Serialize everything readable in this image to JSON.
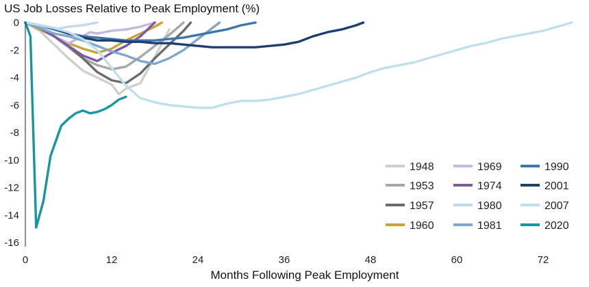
{
  "chart_data": {
    "type": "line",
    "title": "US Job Losses Relative to Peak Employment (%)",
    "xlabel": "Months Following Peak Employment",
    "ylabel": "",
    "xlim": [
      0,
      77
    ],
    "ylim": [
      -16,
      0
    ],
    "xticks": [
      0,
      12,
      24,
      36,
      48,
      60,
      72
    ],
    "yticks": [
      0,
      -2,
      -4,
      -6,
      -8,
      -10,
      -12,
      -14,
      -16
    ],
    "grid": false,
    "legend_position": "bottom-right",
    "series": [
      {
        "name": "1948",
        "color": "#cfcfcf",
        "x": [
          0,
          2,
          4,
          6,
          8,
          10,
          12,
          13,
          14,
          16,
          18,
          20
        ],
        "y": [
          0,
          -0.6,
          -1.6,
          -2.6,
          -3.5,
          -4.0,
          -4.5,
          -5.2,
          -4.8,
          -4.4,
          -2.5,
          -0.5
        ]
      },
      {
        "name": "1953",
        "color": "#a6a6a6",
        "x": [
          0,
          2,
          4,
          6,
          8,
          10,
          12,
          14,
          16,
          18,
          20,
          22
        ],
        "y": [
          0,
          -0.4,
          -1.0,
          -1.8,
          -2.6,
          -3.1,
          -3.4,
          -3.2,
          -2.5,
          -1.7,
          -0.9,
          0
        ]
      },
      {
        "name": "1957",
        "color": "#6b6b6b",
        "x": [
          0,
          2,
          4,
          6,
          8,
          10,
          12,
          14,
          16,
          18,
          20,
          22,
          23
        ],
        "y": [
          0,
          -0.4,
          -1.0,
          -1.7,
          -2.6,
          -3.6,
          -4.2,
          -4.4,
          -3.7,
          -2.6,
          -1.6,
          -0.6,
          0
        ]
      },
      {
        "name": "1960",
        "color": "#c8a434",
        "x": [
          0,
          2,
          4,
          6,
          8,
          10,
          12,
          14,
          16,
          18,
          19
        ],
        "y": [
          0,
          -0.5,
          -1.0,
          -1.5,
          -1.9,
          -2.2,
          -1.9,
          -1.3,
          -0.8,
          -0.3,
          0
        ]
      },
      {
        "name": "1969",
        "color": "#c4b8dc",
        "x": [
          0,
          2,
          4,
          6,
          8,
          9,
          10,
          12,
          14,
          16,
          18
        ],
        "y": [
          0,
          -0.4,
          -1.0,
          -1.5,
          -1.0,
          -0.7,
          -0.8,
          -0.6,
          -0.5,
          -0.3,
          0
        ]
      },
      {
        "name": "1974",
        "color": "#7a5aa6",
        "x": [
          0,
          2,
          4,
          6,
          8,
          10,
          12,
          14,
          16,
          18
        ],
        "y": [
          0,
          -0.4,
          -1.0,
          -1.7,
          -2.4,
          -2.8,
          -2.2,
          -1.7,
          -1.0,
          0
        ]
      },
      {
        "name": "1980",
        "color": "#c5d9ea",
        "x": [
          0,
          2,
          4,
          6,
          8,
          10
        ],
        "y": [
          0,
          -0.3,
          -0.5,
          -0.3,
          -0.2,
          0
        ]
      },
      {
        "name": "1981",
        "color": "#7ea6cf",
        "x": [
          0,
          2,
          4,
          6,
          8,
          10,
          12,
          14,
          16,
          18,
          20,
          22,
          24,
          26,
          27
        ],
        "y": [
          0,
          -0.4,
          -0.8,
          -1.0,
          -1.3,
          -1.7,
          -2.1,
          -2.4,
          -2.8,
          -3.0,
          -2.6,
          -2.0,
          -1.2,
          -0.4,
          0
        ]
      },
      {
        "name": "1990",
        "color": "#3b76ad",
        "x": [
          0,
          2,
          4,
          6,
          8,
          10,
          12,
          14,
          16,
          18,
          20,
          22,
          24,
          26,
          28,
          30,
          32
        ],
        "y": [
          0,
          -0.2,
          -0.5,
          -0.8,
          -1.0,
          -1.1,
          -1.2,
          -1.3,
          -1.3,
          -1.3,
          -1.2,
          -1.1,
          -0.9,
          -0.7,
          -0.5,
          -0.2,
          0
        ]
      },
      {
        "name": "2001",
        "color": "#1f3e6e",
        "x": [
          0,
          2,
          4,
          6,
          8,
          10,
          12,
          14,
          16,
          18,
          20,
          22,
          24,
          26,
          28,
          30,
          32,
          34,
          36,
          38,
          40,
          42,
          44,
          46,
          47
        ],
        "y": [
          0,
          -0.2,
          -0.4,
          -0.8,
          -1.1,
          -1.3,
          -1.3,
          -1.4,
          -1.4,
          -1.5,
          -1.5,
          -1.6,
          -1.7,
          -1.8,
          -1.8,
          -1.8,
          -1.8,
          -1.7,
          -1.6,
          -1.4,
          -1.0,
          -0.7,
          -0.5,
          -0.2,
          0
        ]
      },
      {
        "name": "2007",
        "color": "#bfe0ea",
        "x": [
          0,
          2,
          4,
          6,
          8,
          10,
          12,
          14,
          16,
          18,
          20,
          22,
          24,
          26,
          28,
          30,
          32,
          34,
          36,
          38,
          40,
          42,
          44,
          46,
          48,
          50,
          52,
          54,
          56,
          58,
          60,
          62,
          64,
          66,
          68,
          70,
          72,
          74,
          76
        ],
        "y": [
          0,
          -0.2,
          -0.4,
          -0.7,
          -1.2,
          -2.0,
          -3.3,
          -4.6,
          -5.5,
          -5.8,
          -6.0,
          -6.1,
          -6.2,
          -6.2,
          -5.9,
          -5.7,
          -5.7,
          -5.6,
          -5.4,
          -5.2,
          -4.9,
          -4.6,
          -4.3,
          -4.0,
          -3.6,
          -3.3,
          -3.1,
          -2.9,
          -2.6,
          -2.3,
          -2.0,
          -1.7,
          -1.5,
          -1.2,
          -1.0,
          -0.8,
          -0.6,
          -0.3,
          0
        ]
      },
      {
        "name": "2020",
        "color": "#1596a0",
        "x": [
          0,
          0.7,
          1.5,
          2.5,
          3.5,
          5,
          6,
          7,
          8,
          9,
          10,
          11,
          12,
          13,
          14
        ],
        "y": [
          0,
          -1.0,
          -14.9,
          -13.0,
          -9.7,
          -7.5,
          -7.0,
          -6.6,
          -6.4,
          -6.6,
          -6.5,
          -6.3,
          -6.0,
          -5.6,
          -5.4
        ]
      }
    ]
  }
}
